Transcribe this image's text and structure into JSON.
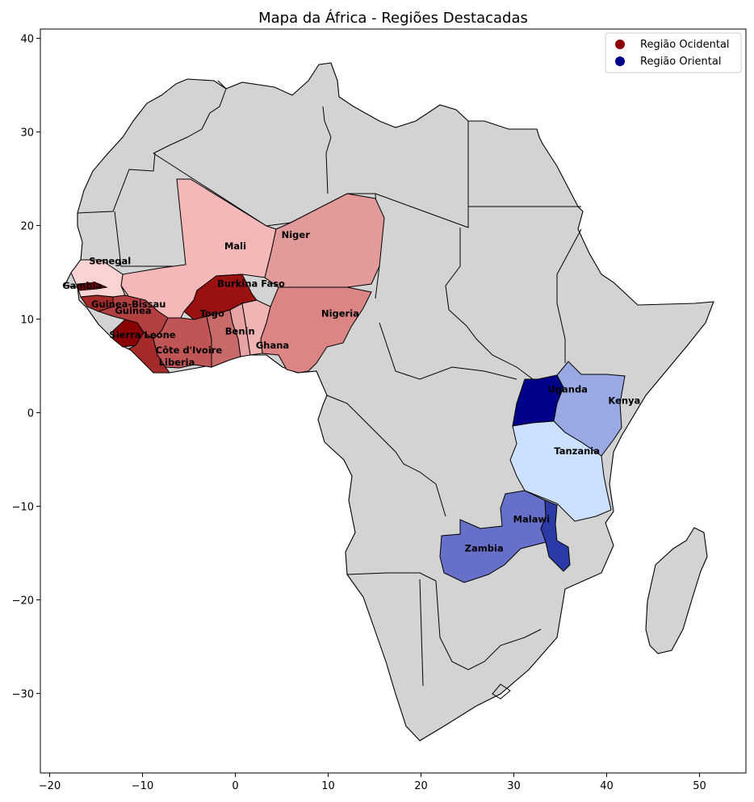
{
  "title": "Mapa da África - Regiões Destacadas",
  "axes": {
    "x_ticks": [
      -20,
      -10,
      0,
      10,
      20,
      30,
      40,
      50
    ],
    "y_ticks": [
      40,
      30,
      20,
      10,
      0,
      -10,
      -20,
      -30
    ],
    "xlim": [
      -21,
      55
    ],
    "ylim": [
      -38.5,
      41
    ]
  },
  "legend": {
    "placement": "top-right",
    "items": [
      {
        "label": "Região Ocidental",
        "color": "#8b0000"
      },
      {
        "label": "Região Oriental",
        "color": "#00008b"
      }
    ]
  },
  "background_land_color": "#d3d3d3",
  "countries": [
    {
      "name": "Mali",
      "region": "Região Ocidental",
      "color": "#f4b8b8",
      "label_lon": 0,
      "label_lat": 17.8
    },
    {
      "name": "Niger",
      "region": "Região Ocidental",
      "color": "#e39a9a",
      "label_lon": 6.5,
      "label_lat": 19.0
    },
    {
      "name": "Nigeria",
      "region": "Região Ocidental",
      "color": "#db8585",
      "label_lon": 11.3,
      "label_lat": 10.6
    },
    {
      "name": "Senegal",
      "region": "Região Ocidental",
      "color": "#fbd3d3",
      "label_lon": -13.5,
      "label_lat": 16.2
    },
    {
      "name": "Gambia",
      "region": "Região Ocidental",
      "color": "#8b0000",
      "label_lon": -16.5,
      "label_lat": 13.6
    },
    {
      "name": "Guinea-Bissau",
      "region": "Região Ocidental",
      "color": "#a52a2a",
      "label_lon": -11.5,
      "label_lat": 11.6
    },
    {
      "name": "Guinea",
      "region": "Região Ocidental",
      "color": "#b34040",
      "label_lon": -11,
      "label_lat": 10.9
    },
    {
      "name": "Sierra Leone",
      "region": "Região Ocidental",
      "color": "#8b0000",
      "label_lon": -10,
      "label_lat": 8.3
    },
    {
      "name": "Liberia",
      "region": "Região Ocidental",
      "color": "#a52a2a",
      "label_lon": -6.3,
      "label_lat": 5.4
    },
    {
      "name": "Côte d'Ivoire",
      "region": "Região Ocidental",
      "color": "#c05555",
      "label_lon": -5,
      "label_lat": 6.7
    },
    {
      "name": "Burkina Faso",
      "region": "Região Ocidental",
      "color": "#991111",
      "label_lon": 1.7,
      "label_lat": 13.8
    },
    {
      "name": "Ghana",
      "region": "Região Ocidental",
      "color": "#c96a6a",
      "label_lon": 4,
      "label_lat": 7.2
    },
    {
      "name": "Togo",
      "region": "Região Ocidental",
      "color": "#e8a4a4",
      "label_lon": -2.5,
      "label_lat": 10.6
    },
    {
      "name": "Benin",
      "region": "Região Ocidental",
      "color": "#f0b4b4",
      "label_lon": 0.5,
      "label_lat": 8.7
    },
    {
      "name": "Uganda",
      "region": "Região Oriental",
      "color": "#00008b",
      "label_lon": 35.8,
      "label_lat": 2.5
    },
    {
      "name": "Kenya",
      "region": "Região Oriental",
      "color": "#9aa8e3",
      "label_lon": 41.9,
      "label_lat": 1.3
    },
    {
      "name": "Tanzania",
      "region": "Região Oriental",
      "color": "#cce0ff",
      "label_lon": 36.8,
      "label_lat": -4.1
    },
    {
      "name": "Malawi",
      "region": "Região Oriental",
      "color": "#2c3aa8",
      "label_lon": 31.9,
      "label_lat": -11.4
    },
    {
      "name": "Zambia",
      "region": "Região Oriental",
      "color": "#6670c9",
      "label_lon": 26.8,
      "label_lat": -14.5
    }
  ]
}
